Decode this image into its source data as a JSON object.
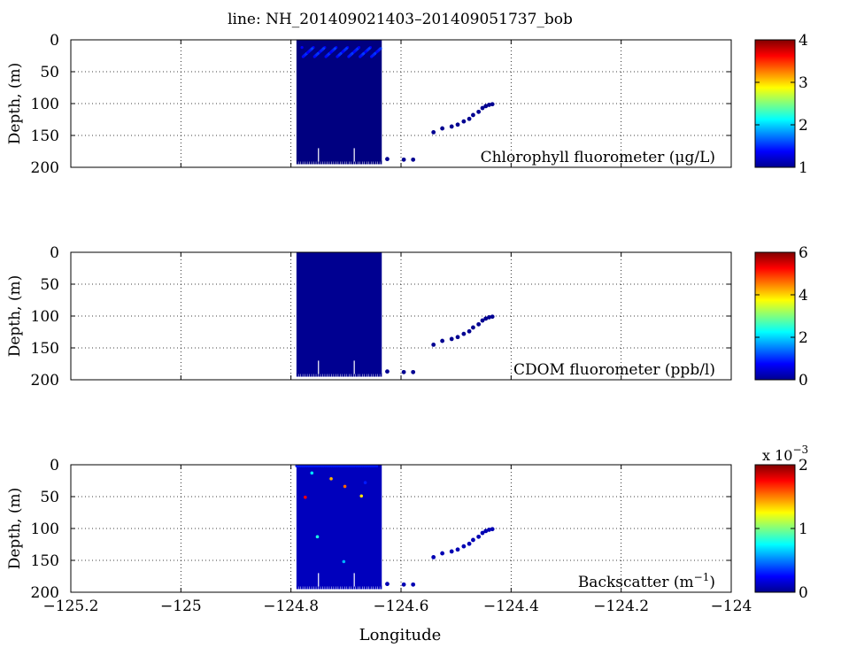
{
  "figure": {
    "title": "line: NH_201409021403–201409051737_bob",
    "xlabel": "Longitude",
    "ylabel": "Depth, (m)"
  },
  "chart_data": [
    {
      "type": "scatter",
      "panel": "chlorophyll",
      "label": "Chlorophyll fluorometer (μg/L)",
      "xlim": [
        -125.2,
        -124.0
      ],
      "ylim": [
        0,
        200
      ],
      "y_reversed": true,
      "x_ticks": [
        -125.2,
        -125,
        -124.8,
        -124.6,
        -124.4,
        -124.2,
        -124
      ],
      "y_ticks": [
        0,
        50,
        100,
        150,
        200
      ],
      "grid": true,
      "colorbar": {
        "min": 1,
        "max": 4,
        "ticks": [
          1,
          2,
          3,
          4
        ],
        "colormap": "jet",
        "exponent": ""
      },
      "glider_block": {
        "lon_range": [
          -124.79,
          -124.635
        ],
        "depth_range": [
          0,
          191
        ],
        "value": 1.0
      },
      "bloom_layer": {
        "lon_range": [
          -124.78,
          -124.635
        ],
        "depth_range": [
          12,
          28
        ],
        "value": 1.35
      },
      "points": [
        {
          "x": -124.625,
          "y": 187,
          "v": 1.05
        },
        {
          "x": -124.595,
          "y": 188,
          "v": 1.05
        },
        {
          "x": -124.578,
          "y": 188,
          "v": 1.05
        },
        {
          "x": -124.541,
          "y": 145,
          "v": 1.05
        },
        {
          "x": -124.525,
          "y": 139,
          "v": 1.05
        },
        {
          "x": -124.508,
          "y": 136,
          "v": 1.05
        },
        {
          "x": -124.497,
          "y": 133,
          "v": 1.05
        },
        {
          "x": -124.486,
          "y": 128,
          "v": 1.05
        },
        {
          "x": -124.476,
          "y": 124,
          "v": 1.05
        },
        {
          "x": -124.469,
          "y": 118,
          "v": 1.05
        },
        {
          "x": -124.459,
          "y": 113,
          "v": 1.05
        },
        {
          "x": -124.452,
          "y": 107,
          "v": 1.05
        },
        {
          "x": -124.446,
          "y": 104,
          "v": 1.05
        },
        {
          "x": -124.44,
          "y": 102,
          "v": 1.05
        },
        {
          "x": -124.434,
          "y": 101,
          "v": 1.05
        }
      ],
      "outliers": []
    },
    {
      "type": "scatter",
      "panel": "cdom",
      "label": "CDOM fluorometer (ppb/l)",
      "xlim": [
        -125.2,
        -124.0
      ],
      "ylim": [
        0,
        200
      ],
      "y_reversed": true,
      "x_ticks": [
        -125.2,
        -125,
        -124.8,
        -124.6,
        -124.4,
        -124.2,
        -124
      ],
      "y_ticks": [
        0,
        50,
        100,
        150,
        200
      ],
      "grid": true,
      "colorbar": {
        "min": 0,
        "max": 6,
        "ticks": [
          0,
          2,
          4,
          6
        ],
        "colormap": "jet",
        "exponent": ""
      },
      "glider_block": {
        "lon_range": [
          -124.79,
          -124.635
        ],
        "depth_range": [
          0,
          191
        ],
        "value": 0.1
      },
      "points": [
        {
          "x": -124.625,
          "y": 187,
          "v": 0.1
        },
        {
          "x": -124.595,
          "y": 188,
          "v": 0.1
        },
        {
          "x": -124.578,
          "y": 188,
          "v": 0.1
        },
        {
          "x": -124.541,
          "y": 145,
          "v": 0.1
        },
        {
          "x": -124.525,
          "y": 139,
          "v": 0.1
        },
        {
          "x": -124.508,
          "y": 136,
          "v": 0.1
        },
        {
          "x": -124.497,
          "y": 133,
          "v": 0.1
        },
        {
          "x": -124.486,
          "y": 128,
          "v": 0.1
        },
        {
          "x": -124.476,
          "y": 124,
          "v": 0.1
        },
        {
          "x": -124.469,
          "y": 118,
          "v": 0.1
        },
        {
          "x": -124.459,
          "y": 113,
          "v": 0.1
        },
        {
          "x": -124.452,
          "y": 107,
          "v": 0.1
        },
        {
          "x": -124.446,
          "y": 104,
          "v": 0.1
        },
        {
          "x": -124.44,
          "y": 102,
          "v": 0.1
        },
        {
          "x": -124.434,
          "y": 101,
          "v": 0.1
        }
      ],
      "outliers": []
    },
    {
      "type": "scatter",
      "panel": "backscatter",
      "label": "Backscatter (m",
      "label_superscript": "−1",
      "label_suffix": ")",
      "xlim": [
        -125.2,
        -124.0
      ],
      "ylim": [
        0,
        200
      ],
      "y_reversed": true,
      "x_ticks": [
        -125.2,
        -125,
        -124.8,
        -124.6,
        -124.4,
        -124.2,
        -124
      ],
      "y_ticks": [
        0,
        50,
        100,
        150,
        200
      ],
      "grid": true,
      "colorbar": {
        "min": 0,
        "max": 2,
        "ticks": [
          0,
          1,
          2
        ],
        "colormap": "jet",
        "exponent": "x 10",
        "exponent_power": "−3"
      },
      "glider_block": {
        "lon_range": [
          -124.79,
          -124.635
        ],
        "depth_range": [
          0,
          191
        ],
        "value": 0.12
      },
      "surface_layer": {
        "lon_range": [
          -124.79,
          -124.64
        ],
        "depth_range": [
          0,
          6
        ],
        "value": 0.3
      },
      "points": [
        {
          "x": -124.625,
          "y": 187,
          "v": 0.1
        },
        {
          "x": -124.595,
          "y": 188,
          "v": 0.1
        },
        {
          "x": -124.578,
          "y": 188,
          "v": 0.1
        },
        {
          "x": -124.541,
          "y": 145,
          "v": 0.1
        },
        {
          "x": -124.525,
          "y": 139,
          "v": 0.1
        },
        {
          "x": -124.508,
          "y": 136,
          "v": 0.1
        },
        {
          "x": -124.497,
          "y": 133,
          "v": 0.1
        },
        {
          "x": -124.486,
          "y": 128,
          "v": 0.1
        },
        {
          "x": -124.476,
          "y": 124,
          "v": 0.1
        },
        {
          "x": -124.469,
          "y": 118,
          "v": 0.1
        },
        {
          "x": -124.459,
          "y": 113,
          "v": 0.1
        },
        {
          "x": -124.452,
          "y": 107,
          "v": 0.1
        },
        {
          "x": -124.446,
          "y": 104,
          "v": 0.1
        },
        {
          "x": -124.44,
          "y": 102,
          "v": 0.1
        },
        {
          "x": -124.434,
          "y": 101,
          "v": 0.1
        }
      ],
      "outliers": [
        {
          "x": -124.762,
          "y": 13,
          "v": 0.7
        },
        {
          "x": -124.727,
          "y": 22,
          "v": 1.4
        },
        {
          "x": -124.665,
          "y": 28,
          "v": 0.3
        },
        {
          "x": -124.702,
          "y": 34,
          "v": 1.55
        },
        {
          "x": -124.774,
          "y": 51,
          "v": 1.75
        },
        {
          "x": -124.672,
          "y": 49,
          "v": 1.3
        },
        {
          "x": -124.752,
          "y": 113,
          "v": 0.8
        },
        {
          "x": -124.704,
          "y": 152,
          "v": 0.6
        }
      ]
    }
  ]
}
